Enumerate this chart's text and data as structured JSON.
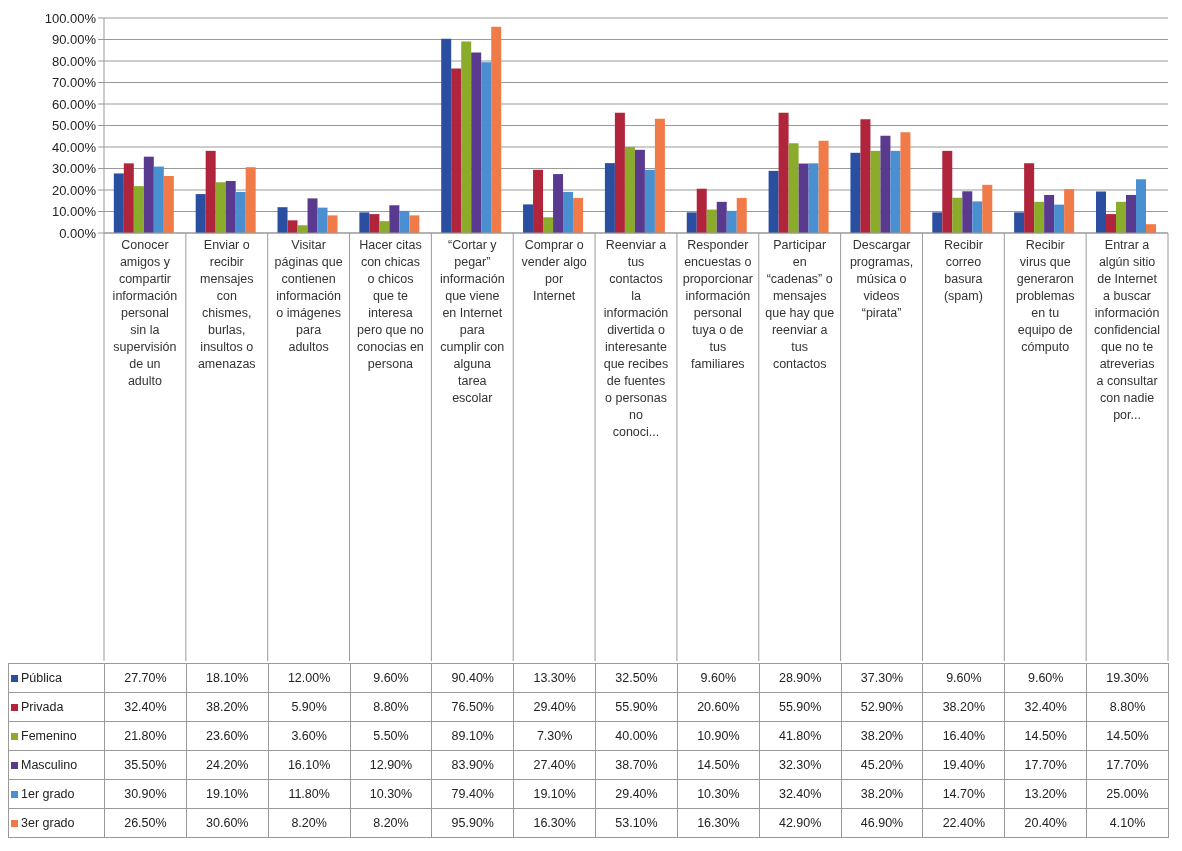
{
  "chart_data": {
    "type": "bar",
    "categories": [
      "Conocer amigos y compartir información personal sin la supervisión de un adulto",
      "Enviar o recibir mensajes con chismes, burlas, insultos o amenazas",
      "Visitar páginas que contienen información o imágenes para adultos",
      "Hacer citas con chicas o chicos que te interesa pero que no conocias en persona",
      "“Cortar y pegar” información que viene en Internet para cumplir con alguna tarea escolar",
      "Comprar o vender algo por Internet",
      "Reenviar a tus contactos la información divertida o interesante que recibes de fuentes o personas no conoci...",
      "Responder encuestas o proporcionar información personal tuya o de tus familiares",
      "Participar en “cadenas” o mensajes que hay que reenviar a tus contactos",
      "Descargar programas, música o videos “pirata”",
      "Recibir correo basura (spam)",
      "Recibir virus que generaron problemas en tu equipo de cómputo",
      "Entrar a algún sitio de Internet a buscar información confidencial que no te atreverias a consultar con nadie por..."
    ],
    "series": [
      {
        "name": "Pública",
        "color": "#2a4fa0",
        "values": [
          27.7,
          18.1,
          12.0,
          9.6,
          90.4,
          13.3,
          32.5,
          9.6,
          28.9,
          37.3,
          9.6,
          9.6,
          19.3
        ],
        "value_labels": [
          "27.70%",
          "18.10%",
          "12.00%",
          "9.60%",
          "90.40%",
          "13.30%",
          "32.50%",
          "9.60%",
          "28.90%",
          "37.30%",
          "9.60%",
          "9.60%",
          "19.30%"
        ]
      },
      {
        "name": "Privada",
        "color": "#b0243c",
        "values": [
          32.4,
          38.2,
          5.9,
          8.8,
          76.5,
          29.4,
          55.9,
          20.6,
          55.9,
          52.9,
          38.2,
          32.4,
          8.8
        ],
        "value_labels": [
          "32.40%",
          "38.20%",
          "5.90%",
          "8.80%",
          "76.50%",
          "29.40%",
          "55.90%",
          "20.60%",
          "55.90%",
          "52.90%",
          "38.20%",
          "32.40%",
          "8.80%"
        ]
      },
      {
        "name": "Femenino",
        "color": "#8aac2a",
        "values": [
          21.8,
          23.6,
          3.6,
          5.5,
          89.1,
          7.3,
          40.0,
          10.9,
          41.8,
          38.2,
          16.4,
          14.5,
          14.5
        ],
        "value_labels": [
          "21.80%",
          "23.60%",
          "3.60%",
          "5.50%",
          "89.10%",
          "7.30%",
          "40.00%",
          "10.90%",
          "41.80%",
          "38.20%",
          "16.40%",
          "14.50%",
          "14.50%"
        ]
      },
      {
        "name": "Masculino",
        "color": "#5a3a8e",
        "values": [
          35.5,
          24.2,
          16.1,
          12.9,
          83.9,
          27.4,
          38.7,
          14.5,
          32.3,
          45.2,
          19.4,
          17.7,
          17.7
        ],
        "value_labels": [
          "35.50%",
          "24.20%",
          "16.10%",
          "12.90%",
          "83.90%",
          "27.40%",
          "38.70%",
          "14.50%",
          "32.30%",
          "45.20%",
          "19.40%",
          "17.70%",
          "17.70%"
        ]
      },
      {
        "name": "1er grado",
        "color": "#4a8fd0",
        "values": [
          30.9,
          19.1,
          11.8,
          10.3,
          79.4,
          19.1,
          29.4,
          10.3,
          32.4,
          38.2,
          14.7,
          13.2,
          25.0
        ],
        "value_labels": [
          "30.90%",
          "19.10%",
          "11.80%",
          "10.30%",
          "79.40%",
          "19.10%",
          "29.40%",
          "10.30%",
          "32.40%",
          "38.20%",
          "14.70%",
          "13.20%",
          "25.00%"
        ]
      },
      {
        "name": "3er grado",
        "color": "#f07a48",
        "values": [
          26.5,
          30.6,
          8.2,
          8.2,
          95.9,
          16.3,
          53.1,
          16.3,
          42.9,
          46.9,
          22.4,
          20.4,
          4.1
        ],
        "value_labels": [
          "26.50%",
          "30.60%",
          "8.20%",
          "8.20%",
          "95.90%",
          "16.30%",
          "53.10%",
          "16.30%",
          "42.90%",
          "46.90%",
          "22.40%",
          "20.40%",
          "4.10%"
        ]
      }
    ],
    "ylim": [
      0,
      100
    ],
    "yticks": [
      {
        "value": 0,
        "label": "0.00%"
      },
      {
        "value": 10,
        "label": "10.00%"
      },
      {
        "value": 20,
        "label": "20.00%"
      },
      {
        "value": 30,
        "label": "30.00%"
      },
      {
        "value": 40,
        "label": "40.00%"
      },
      {
        "value": 50,
        "label": "50.00%"
      },
      {
        "value": 60,
        "label": "60.00%"
      },
      {
        "value": 70,
        "label": "70.00%"
      },
      {
        "value": 80,
        "label": "80.00%"
      },
      {
        "value": 90,
        "label": "90.00%"
      },
      {
        "value": 100,
        "label": "100.00%"
      }
    ],
    "grid": "y",
    "legend": "bottom left"
  }
}
